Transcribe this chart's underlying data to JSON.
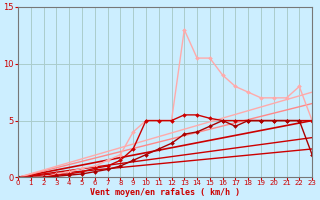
{
  "background_color": "#cceeff",
  "grid_color": "#aacccc",
  "xlabel": "Vent moyen/en rafales ( km/h )",
  "xlabel_color": "#cc0000",
  "ylabel_color": "#cc0000",
  "tick_color": "#cc0000",
  "xlim": [
    0,
    23
  ],
  "ylim": [
    0,
    15
  ],
  "yticks": [
    0,
    5,
    10,
    15
  ],
  "xticks": [
    0,
    1,
    2,
    3,
    4,
    5,
    6,
    7,
    8,
    9,
    10,
    11,
    12,
    13,
    14,
    15,
    16,
    17,
    18,
    19,
    20,
    21,
    22,
    23
  ],
  "lines": [
    {
      "x": [
        0,
        23
      ],
      "y": [
        0,
        2.5
      ],
      "color": "#cc0000",
      "lw": 1.0,
      "marker": null,
      "ms": 0
    },
    {
      "x": [
        0,
        23
      ],
      "y": [
        0,
        3.5
      ],
      "color": "#cc0000",
      "lw": 1.0,
      "marker": null,
      "ms": 0
    },
    {
      "x": [
        0,
        23
      ],
      "y": [
        0,
        5.0
      ],
      "color": "#cc0000",
      "lw": 1.2,
      "marker": null,
      "ms": 0
    },
    {
      "x": [
        0,
        23
      ],
      "y": [
        0,
        6.5
      ],
      "color": "#ff8888",
      "lw": 1.0,
      "marker": null,
      "ms": 0
    },
    {
      "x": [
        0,
        23
      ],
      "y": [
        0,
        7.5
      ],
      "color": "#ffaaaa",
      "lw": 1.0,
      "marker": null,
      "ms": 0
    },
    {
      "x": [
        0,
        1,
        2,
        3,
        4,
        5,
        6,
        7,
        8,
        9,
        10,
        11,
        12,
        13,
        14,
        15,
        16,
        17,
        18,
        19,
        20,
        21,
        22,
        23
      ],
      "y": [
        0,
        0,
        0,
        0.3,
        0.5,
        0.8,
        1.0,
        1.5,
        2.0,
        4.0,
        5.0,
        5.0,
        5.0,
        13.0,
        10.5,
        10.5,
        9.0,
        8.0,
        7.5,
        7.0,
        7.0,
        7.0,
        8.0,
        5.0
      ],
      "color": "#ffaaaa",
      "lw": 1.0,
      "marker": "D",
      "ms": 2.0
    },
    {
      "x": [
        0,
        1,
        2,
        3,
        4,
        5,
        6,
        7,
        8,
        9,
        10,
        11,
        12,
        13,
        14,
        15,
        16,
        17,
        18,
        19,
        20,
        21,
        22,
        23
      ],
      "y": [
        0,
        0,
        0,
        0.2,
        0.3,
        0.5,
        0.8,
        1.0,
        1.5,
        2.5,
        5.0,
        5.0,
        5.0,
        5.5,
        5.5,
        5.2,
        5.0,
        5.0,
        5.0,
        5.0,
        5.0,
        5.0,
        5.0,
        5.0
      ],
      "color": "#cc0000",
      "lw": 1.0,
      "marker": "D",
      "ms": 2.0
    },
    {
      "x": [
        0,
        1,
        2,
        3,
        4,
        5,
        6,
        7,
        8,
        9,
        10,
        11,
        12,
        13,
        14,
        15,
        16,
        17,
        18,
        19,
        20,
        21,
        22,
        23
      ],
      "y": [
        0,
        0,
        0,
        0.1,
        0.2,
        0.3,
        0.5,
        0.7,
        1.0,
        1.5,
        2.0,
        2.5,
        3.0,
        3.8,
        4.0,
        4.5,
        5.0,
        4.5,
        5.0,
        5.0,
        5.0,
        5.0,
        5.0,
        2.0
      ],
      "color": "#aa0000",
      "lw": 1.0,
      "marker": "D",
      "ms": 2.0
    }
  ]
}
